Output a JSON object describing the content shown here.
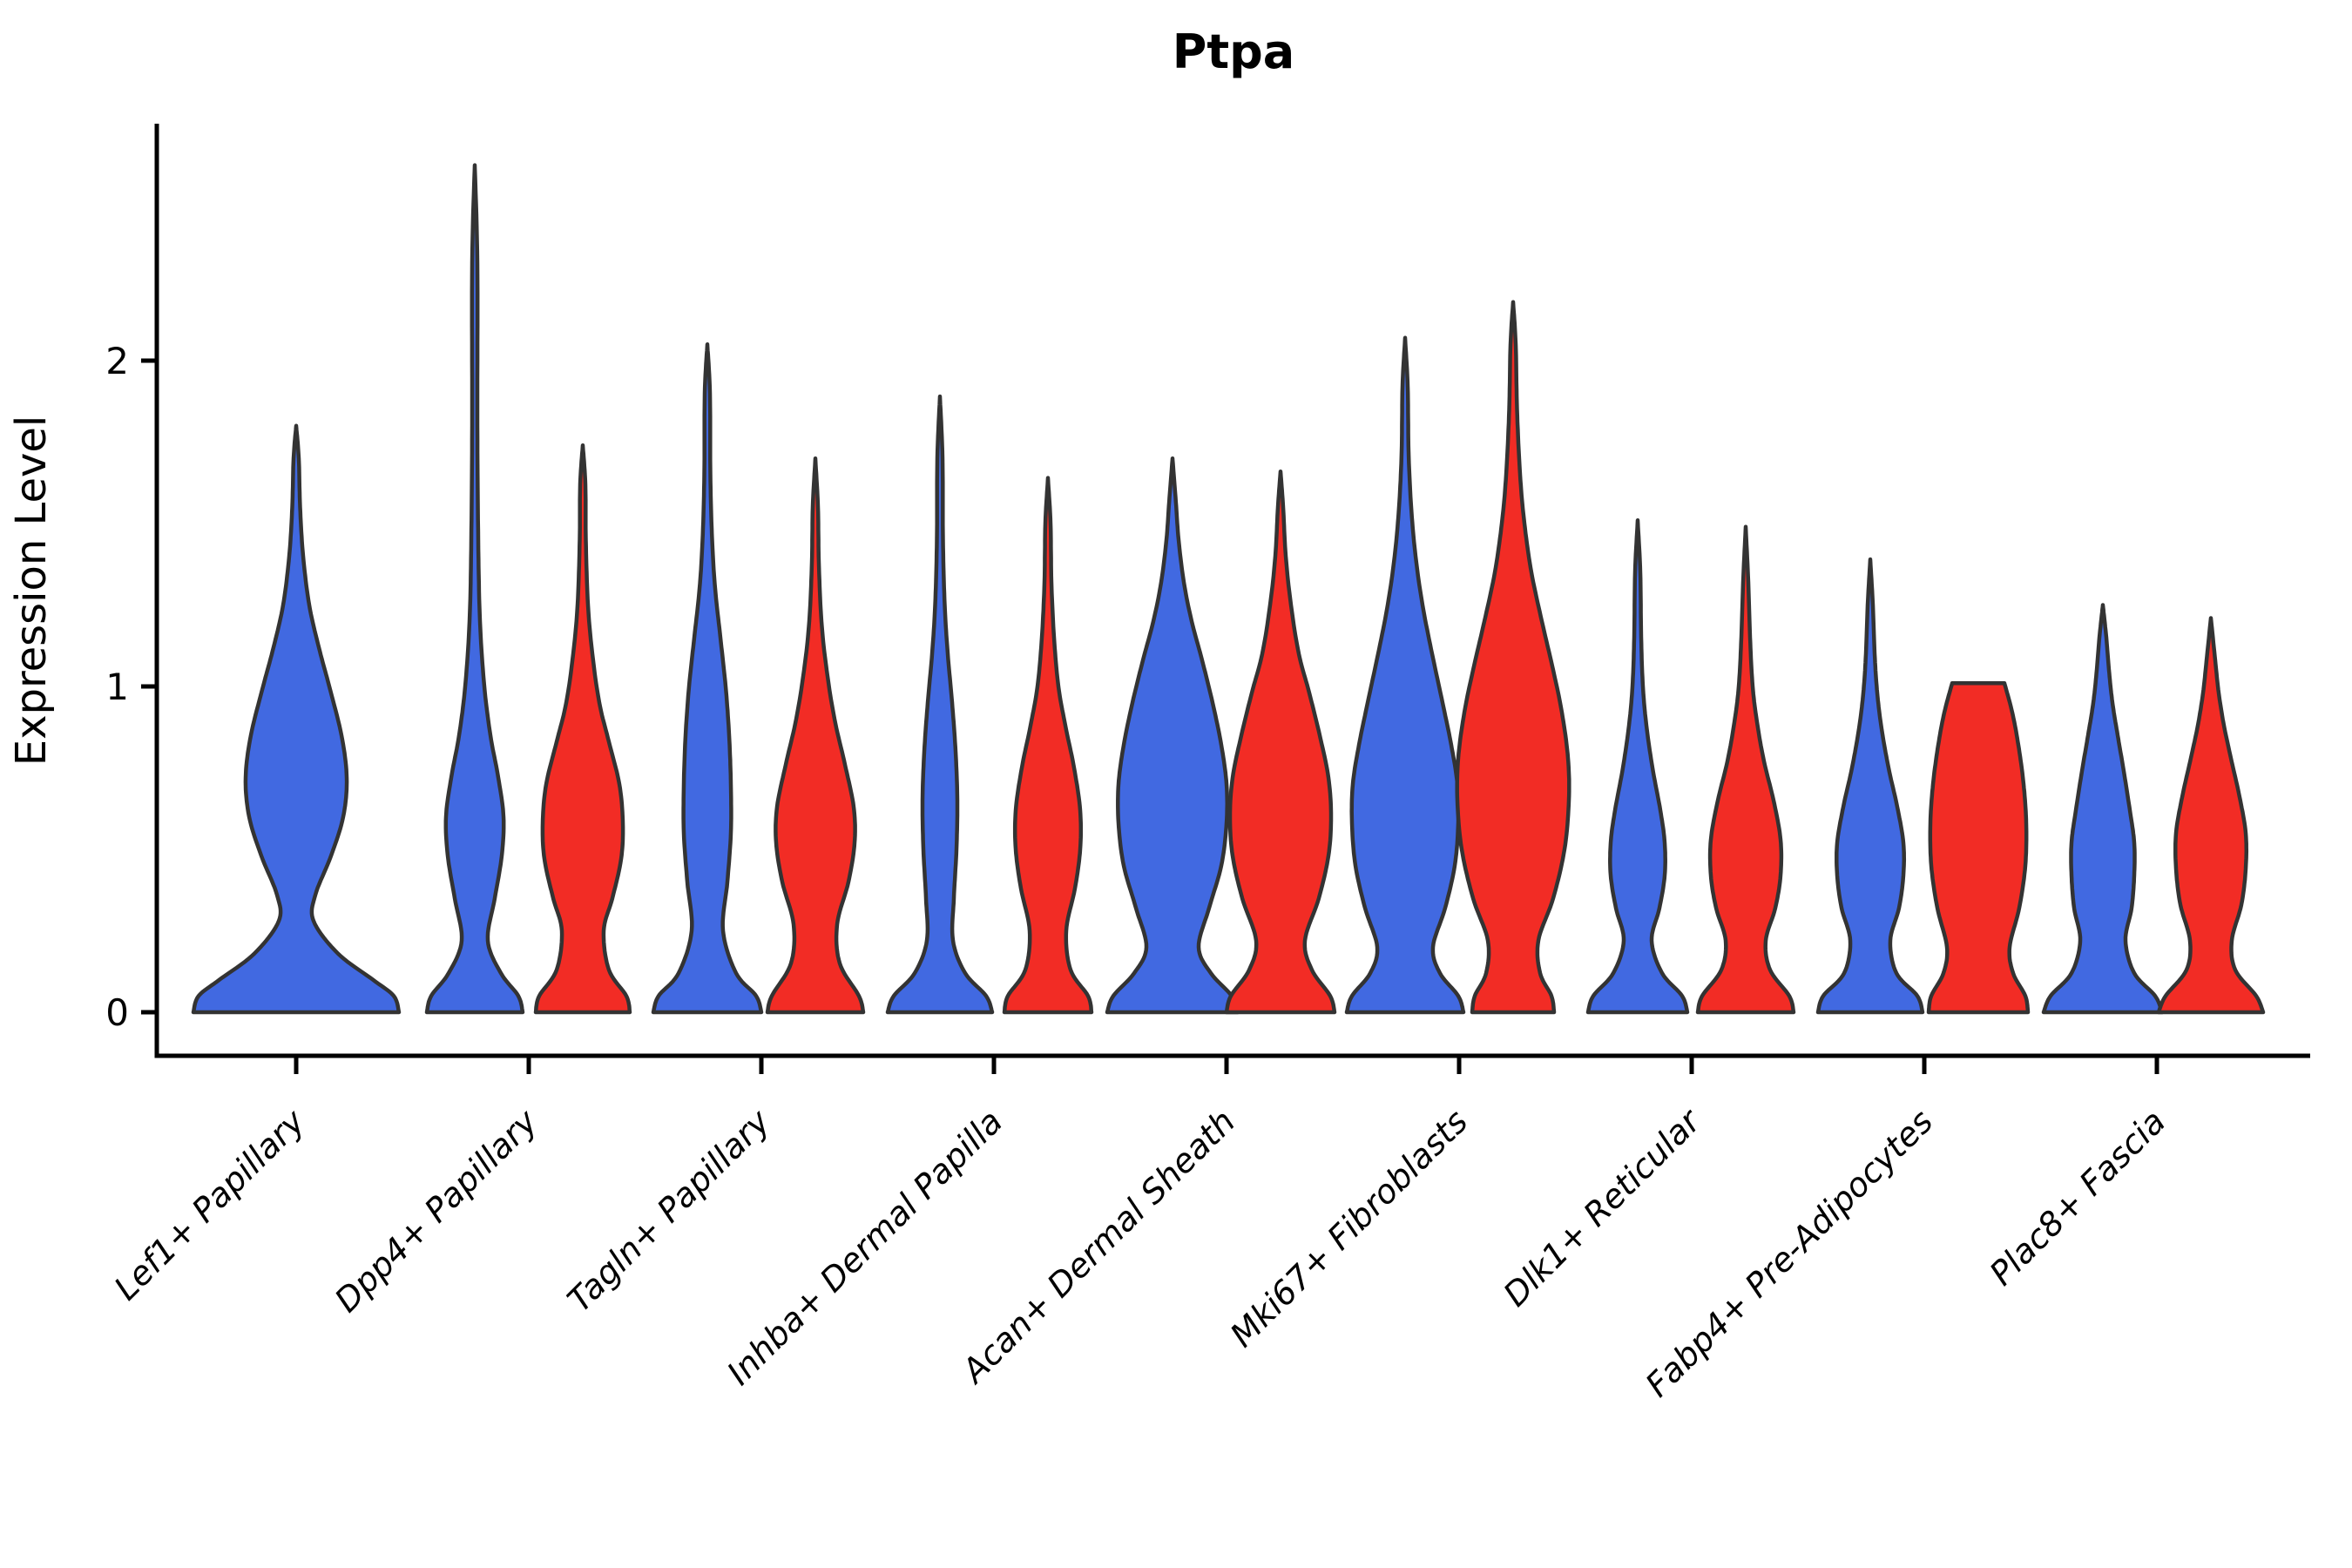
{
  "title": "Ptpa",
  "axes": {
    "ylabel": "Expression Level",
    "ytick_labels": [
      "0",
      "1",
      "2"
    ]
  },
  "colors": {
    "blue": "#4169E1",
    "red": "#F22C25",
    "outline": "#333333",
    "axis": "#000000"
  },
  "chart_data": {
    "type": "violin",
    "title": "Ptpa",
    "ylabel": "Expression Level",
    "ylim": [
      0,
      2.72
    ],
    "yticks": [
      0,
      1,
      2
    ],
    "grid": false,
    "legend": "none",
    "categories": [
      "Lef1+ Papillary",
      "Dpp4+ Papillary",
      "Tagln+ Papillary",
      "Inhba+ Dermal Papilla",
      "Acan+ Dermal Sheath",
      "Mki67+ Fibroblasts",
      "Dlk1+ Reticular",
      "Fabp4+ Pre-Adipocytes",
      "Plac8+ Fascia"
    ],
    "series": [
      {
        "name": "blue",
        "color": "#4169E1",
        "max_expression": [
          1.8,
          2.6,
          2.05,
          1.89,
          1.7,
          2.07,
          1.51,
          1.39,
          1.25
        ]
      },
      {
        "name": "red",
        "color": "#F22C25",
        "max_expression": [
          null,
          1.74,
          1.7,
          1.64,
          1.66,
          2.18,
          1.49,
          1.01,
          1.21
        ]
      }
    ],
    "violins": [
      {
        "category": "Lef1+ Papillary",
        "series": "blue",
        "group": 0,
        "side": "single",
        "max": 1.8,
        "flat_top": false,
        "profile": [
          [
            0,
            118
          ],
          [
            0.05,
            112
          ],
          [
            0.1,
            88
          ],
          [
            0.18,
            48
          ],
          [
            0.28,
            20
          ],
          [
            0.36,
            22
          ],
          [
            0.48,
            40
          ],
          [
            0.6,
            54
          ],
          [
            0.72,
            58
          ],
          [
            0.85,
            52
          ],
          [
            1.0,
            38
          ],
          [
            1.12,
            26
          ],
          [
            1.25,
            15
          ],
          [
            1.4,
            8
          ],
          [
            1.55,
            4.5
          ],
          [
            1.7,
            3
          ],
          [
            1.8,
            0
          ]
        ]
      },
      {
        "category": "Dpp4+ Papillary",
        "series": "blue",
        "group": 1,
        "side": "left",
        "max": 2.6,
        "flat_top": false,
        "profile": [
          [
            0,
            55
          ],
          [
            0.05,
            50
          ],
          [
            0.12,
            30
          ],
          [
            0.22,
            15
          ],
          [
            0.35,
            23
          ],
          [
            0.48,
            31
          ],
          [
            0.6,
            33
          ],
          [
            0.72,
            27
          ],
          [
            0.85,
            18
          ],
          [
            1.0,
            11
          ],
          [
            1.2,
            6
          ],
          [
            1.45,
            4
          ],
          [
            1.8,
            3
          ],
          [
            2.3,
            3
          ],
          [
            2.6,
            0
          ]
        ]
      },
      {
        "category": "Dpp4+ Papillary",
        "series": "red",
        "group": 1,
        "side": "right",
        "max": 1.74,
        "flat_top": false,
        "profile": [
          [
            0,
            54
          ],
          [
            0.05,
            50
          ],
          [
            0.13,
            30
          ],
          [
            0.25,
            24
          ],
          [
            0.35,
            34
          ],
          [
            0.47,
            44
          ],
          [
            0.58,
            46
          ],
          [
            0.7,
            42
          ],
          [
            0.83,
            30
          ],
          [
            0.95,
            19
          ],
          [
            1.1,
            11
          ],
          [
            1.25,
            6
          ],
          [
            1.45,
            3.5
          ],
          [
            1.62,
            3
          ],
          [
            1.74,
            0
          ]
        ]
      },
      {
        "category": "Tagln+ Papillary",
        "series": "blue",
        "group": 2,
        "side": "left",
        "max": 2.05,
        "flat_top": false,
        "profile": [
          [
            0,
            62
          ],
          [
            0.05,
            56
          ],
          [
            0.12,
            33
          ],
          [
            0.25,
            18
          ],
          [
            0.4,
            23
          ],
          [
            0.55,
            27
          ],
          [
            0.7,
            27
          ],
          [
            0.85,
            25
          ],
          [
            1.0,
            21
          ],
          [
            1.15,
            15
          ],
          [
            1.3,
            9
          ],
          [
            1.45,
            5.5
          ],
          [
            1.65,
            3.5
          ],
          [
            1.9,
            3
          ],
          [
            2.05,
            0
          ]
        ]
      },
      {
        "category": "Tagln+ Papillary",
        "series": "red",
        "group": 2,
        "side": "right",
        "max": 1.7,
        "flat_top": false,
        "profile": [
          [
            0,
            55
          ],
          [
            0.05,
            50
          ],
          [
            0.15,
            28
          ],
          [
            0.27,
            25
          ],
          [
            0.4,
            38
          ],
          [
            0.52,
            45
          ],
          [
            0.63,
            44
          ],
          [
            0.76,
            34
          ],
          [
            0.9,
            22
          ],
          [
            1.05,
            13
          ],
          [
            1.2,
            7
          ],
          [
            1.38,
            4
          ],
          [
            1.55,
            3
          ],
          [
            1.7,
            0
          ]
        ]
      },
      {
        "category": "Inhba+ Dermal Papilla",
        "series": "blue",
        "group": 3,
        "side": "left",
        "max": 1.89,
        "flat_top": false,
        "profile": [
          [
            0,
            60
          ],
          [
            0.05,
            53
          ],
          [
            0.12,
            29
          ],
          [
            0.22,
            15
          ],
          [
            0.35,
            16
          ],
          [
            0.5,
            19
          ],
          [
            0.65,
            20
          ],
          [
            0.8,
            18
          ],
          [
            0.95,
            14
          ],
          [
            1.1,
            9
          ],
          [
            1.25,
            5.5
          ],
          [
            1.45,
            3.5
          ],
          [
            1.7,
            3
          ],
          [
            1.89,
            0
          ]
        ]
      },
      {
        "category": "Inhba+ Dermal Papilla",
        "series": "red",
        "group": 3,
        "side": "right",
        "max": 1.64,
        "flat_top": false,
        "profile": [
          [
            0,
            50
          ],
          [
            0.05,
            46
          ],
          [
            0.13,
            26
          ],
          [
            0.25,
            21
          ],
          [
            0.38,
            31
          ],
          [
            0.5,
            37
          ],
          [
            0.62,
            37
          ],
          [
            0.75,
            30
          ],
          [
            0.88,
            20
          ],
          [
            1.0,
            12
          ],
          [
            1.15,
            7
          ],
          [
            1.32,
            4
          ],
          [
            1.5,
            3
          ],
          [
            1.64,
            0
          ]
        ]
      },
      {
        "category": "Acan+ Dermal Sheath",
        "series": "blue",
        "group": 4,
        "side": "left",
        "max": 1.7,
        "flat_top": false,
        "profile": [
          [
            0,
            75
          ],
          [
            0.05,
            68
          ],
          [
            0.12,
            44
          ],
          [
            0.2,
            30
          ],
          [
            0.32,
            42
          ],
          [
            0.45,
            56
          ],
          [
            0.58,
            62
          ],
          [
            0.7,
            62
          ],
          [
            0.82,
            56
          ],
          [
            0.95,
            46
          ],
          [
            1.08,
            34
          ],
          [
            1.2,
            22
          ],
          [
            1.32,
            13
          ],
          [
            1.45,
            7
          ],
          [
            1.58,
            3.5
          ],
          [
            1.7,
            0
          ]
        ]
      },
      {
        "category": "Acan+ Dermal Sheath",
        "series": "red",
        "group": 4,
        "side": "right",
        "max": 1.66,
        "flat_top": false,
        "profile": [
          [
            0,
            62
          ],
          [
            0.05,
            57
          ],
          [
            0.13,
            36
          ],
          [
            0.22,
            28
          ],
          [
            0.35,
            44
          ],
          [
            0.48,
            55
          ],
          [
            0.6,
            58
          ],
          [
            0.72,
            55
          ],
          [
            0.85,
            45
          ],
          [
            0.98,
            33
          ],
          [
            1.1,
            21
          ],
          [
            1.25,
            12
          ],
          [
            1.4,
            6
          ],
          [
            1.55,
            3
          ],
          [
            1.66,
            0
          ]
        ]
      },
      {
        "category": "Mki67+ Fibroblasts",
        "series": "blue",
        "group": 5,
        "side": "left",
        "max": 2.07,
        "flat_top": false,
        "profile": [
          [
            0,
            67
          ],
          [
            0.05,
            61
          ],
          [
            0.12,
            40
          ],
          [
            0.2,
            32
          ],
          [
            0.32,
            46
          ],
          [
            0.45,
            57
          ],
          [
            0.58,
            61
          ],
          [
            0.7,
            60
          ],
          [
            0.82,
            53
          ],
          [
            0.95,
            43
          ],
          [
            1.1,
            31
          ],
          [
            1.25,
            20
          ],
          [
            1.4,
            12
          ],
          [
            1.55,
            7
          ],
          [
            1.72,
            4
          ],
          [
            1.92,
            3
          ],
          [
            2.07,
            0
          ]
        ]
      },
      {
        "category": "Mki67+ Fibroblasts",
        "series": "red",
        "group": 5,
        "side": "right",
        "max": 2.18,
        "flat_top": false,
        "profile": [
          [
            0,
            47
          ],
          [
            0.05,
            44
          ],
          [
            0.12,
            31
          ],
          [
            0.22,
            29
          ],
          [
            0.35,
            46
          ],
          [
            0.5,
            59
          ],
          [
            0.65,
            64
          ],
          [
            0.78,
            63
          ],
          [
            0.92,
            56
          ],
          [
            1.05,
            46
          ],
          [
            1.2,
            33
          ],
          [
            1.35,
            21
          ],
          [
            1.5,
            13
          ],
          [
            1.65,
            8
          ],
          [
            1.85,
            4.5
          ],
          [
            2.05,
            3
          ],
          [
            2.18,
            0
          ]
        ]
      },
      {
        "category": "Dlk1+ Reticular",
        "series": "blue",
        "group": 6,
        "side": "left",
        "max": 1.51,
        "flat_top": false,
        "profile": [
          [
            0,
            57
          ],
          [
            0.05,
            51
          ],
          [
            0.12,
            28
          ],
          [
            0.22,
            16
          ],
          [
            0.32,
            25
          ],
          [
            0.42,
            31
          ],
          [
            0.52,
            31
          ],
          [
            0.62,
            26
          ],
          [
            0.75,
            17
          ],
          [
            0.88,
            10
          ],
          [
            1.0,
            6
          ],
          [
            1.15,
            4
          ],
          [
            1.35,
            3
          ],
          [
            1.51,
            0
          ]
        ]
      },
      {
        "category": "Dlk1+ Reticular",
        "series": "red",
        "group": 6,
        "side": "right",
        "max": 1.49,
        "flat_top": false,
        "profile": [
          [
            0,
            55
          ],
          [
            0.05,
            50
          ],
          [
            0.13,
            28
          ],
          [
            0.22,
            23
          ],
          [
            0.32,
            34
          ],
          [
            0.42,
            40
          ],
          [
            0.53,
            40
          ],
          [
            0.65,
            32
          ],
          [
            0.77,
            21
          ],
          [
            0.89,
            13
          ],
          [
            1.0,
            8
          ],
          [
            1.15,
            5
          ],
          [
            1.32,
            3
          ],
          [
            1.49,
            0
          ]
        ]
      },
      {
        "category": "Fabp4+ Pre-Adipocytes",
        "series": "blue",
        "group": 7,
        "side": "left",
        "max": 1.39,
        "flat_top": false,
        "profile": [
          [
            0,
            60
          ],
          [
            0.05,
            54
          ],
          [
            0.12,
            30
          ],
          [
            0.22,
            23
          ],
          [
            0.32,
            33
          ],
          [
            0.42,
            38
          ],
          [
            0.52,
            38
          ],
          [
            0.63,
            31
          ],
          [
            0.75,
            21
          ],
          [
            0.87,
            13
          ],
          [
            0.98,
            8
          ],
          [
            1.1,
            5
          ],
          [
            1.25,
            3
          ],
          [
            1.39,
            0
          ]
        ]
      },
      {
        "category": "Fabp4+ Pre-Adipocytes",
        "series": "red",
        "group": 7,
        "side": "right",
        "max": 1.01,
        "flat_top": true,
        "profile": [
          [
            0,
            57
          ],
          [
            0.05,
            54
          ],
          [
            0.12,
            40
          ],
          [
            0.2,
            36
          ],
          [
            0.32,
            47
          ],
          [
            0.45,
            54
          ],
          [
            0.58,
            55
          ],
          [
            0.7,
            52
          ],
          [
            0.82,
            46
          ],
          [
            0.92,
            39
          ],
          [
            1.01,
            30
          ]
        ]
      },
      {
        "category": "Plac8+ Fascia",
        "series": "blue",
        "group": 8,
        "side": "left",
        "max": 1.25,
        "flat_top": false,
        "profile": [
          [
            0,
            68
          ],
          [
            0.05,
            60
          ],
          [
            0.12,
            36
          ],
          [
            0.22,
            26
          ],
          [
            0.32,
            33
          ],
          [
            0.42,
            36
          ],
          [
            0.52,
            36
          ],
          [
            0.62,
            31
          ],
          [
            0.74,
            24
          ],
          [
            0.85,
            17
          ],
          [
            0.95,
            11
          ],
          [
            1.05,
            7
          ],
          [
            1.15,
            4
          ],
          [
            1.25,
            0
          ]
        ]
      },
      {
        "category": "Plac8+ Fascia",
        "series": "red",
        "group": 8,
        "side": "right",
        "max": 1.21,
        "flat_top": false,
        "profile": [
          [
            0,
            60
          ],
          [
            0.05,
            52
          ],
          [
            0.13,
            28
          ],
          [
            0.22,
            24
          ],
          [
            0.33,
            35
          ],
          [
            0.44,
            40
          ],
          [
            0.55,
            40
          ],
          [
            0.66,
            33
          ],
          [
            0.78,
            23
          ],
          [
            0.88,
            15
          ],
          [
            0.98,
            9
          ],
          [
            1.08,
            5
          ],
          [
            1.21,
            0
          ]
        ]
      }
    ]
  }
}
